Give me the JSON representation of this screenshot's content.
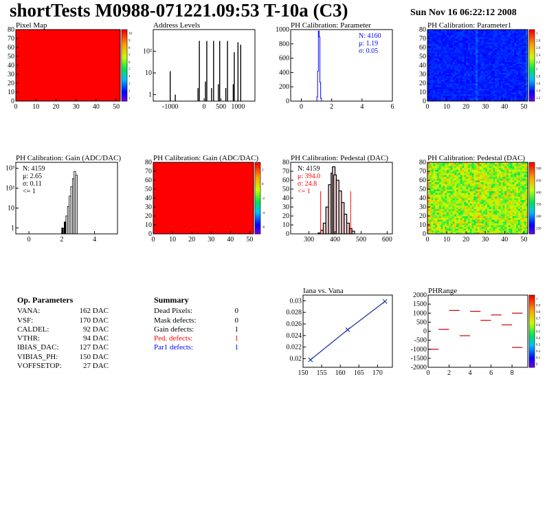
{
  "header": {
    "title": "shortTests M0988-071221.09:53 T-10a (C3)",
    "date": "Sun Nov 16 06:22:12 2008"
  },
  "colors": {
    "black": "#000000",
    "red": "#ff0000",
    "blue": "#0000ff",
    "hist_red": "#cc0000",
    "line_blue": "#2233aa"
  },
  "chart_data": [
    {
      "id": "pixel-map",
      "type": "heatmap",
      "title": "Pixel Map",
      "xlim": [
        0,
        52
      ],
      "ylim": [
        0,
        80
      ],
      "xticks": [
        "0",
        "10",
        "20",
        "30",
        "40",
        "50"
      ],
      "yticks": [
        "0",
        "10",
        "20",
        "30",
        "40",
        "50",
        "60",
        "70",
        "80"
      ],
      "uniform_value": 10,
      "zticks": [
        "1",
        "2",
        "3",
        "4",
        "5",
        "6",
        "7",
        "8",
        "9",
        "10"
      ]
    },
    {
      "id": "address-levels",
      "type": "bar",
      "title": "Address Levels",
      "xlim": [
        -1500,
        1500
      ],
      "ylog": true,
      "xticks": [
        "-1000",
        "0",
        "500",
        "1000"
      ],
      "yticks": [
        "1",
        "10",
        "10²"
      ],
      "peaks": [
        {
          "x": -1000,
          "y": 12
        },
        {
          "x": -850,
          "y": 1
        },
        {
          "x": -180,
          "y": 2
        },
        {
          "x": -140,
          "y": 300
        },
        {
          "x": 40,
          "y": 4
        },
        {
          "x": 80,
          "y": 300
        },
        {
          "x": 220,
          "y": 2
        },
        {
          "x": 280,
          "y": 300
        },
        {
          "x": 420,
          "y": 3
        },
        {
          "x": 460,
          "y": 300
        },
        {
          "x": 640,
          "y": 2
        },
        {
          "x": 690,
          "y": 300
        },
        {
          "x": 860,
          "y": 3
        },
        {
          "x": 890,
          "y": 90
        },
        {
          "x": 1000,
          "y": 260
        },
        {
          "x": 1080,
          "y": 200
        }
      ]
    },
    {
      "id": "ph-calibration-parameter",
      "type": "bar",
      "title": "PH Calibration: Parameter",
      "xlim": [
        -0.7,
        6.0
      ],
      "ylim": [
        0,
        1000
      ],
      "xticks": [
        "0",
        "2",
        "4",
        "6"
      ],
      "yticks": [
        "0",
        "200",
        "400",
        "600",
        "800",
        "1000"
      ],
      "bins": [
        {
          "x": 1.05,
          "y": 60
        },
        {
          "x": 1.1,
          "y": 420
        },
        {
          "x": 1.15,
          "y": 980
        },
        {
          "x": 1.2,
          "y": 900
        },
        {
          "x": 1.25,
          "y": 260
        },
        {
          "x": 1.3,
          "y": 40
        }
      ],
      "stats": [
        "N: 4160",
        "μ: 1.19",
        "σ: 0.05"
      ]
    },
    {
      "id": "ph-calibration-parameter1",
      "type": "heatmap",
      "title": "PH Calibration: Parameter1",
      "xlim": [
        0,
        52
      ],
      "ylim": [
        0,
        80
      ],
      "xticks": [
        "0",
        "10",
        "20",
        "30",
        "40",
        "50"
      ],
      "yticks": [
        "0",
        "10",
        "20",
        "30",
        "40",
        "50",
        "60",
        "70",
        "80"
      ],
      "zticks": [
        "1.2",
        "1.4",
        "1.6",
        "1.8",
        "2",
        "2.2",
        "2.4",
        "2.6",
        "2.8",
        "3"
      ]
    },
    {
      "id": "ph-calibration-gain-hist",
      "type": "bar",
      "title": "PH Calibration: Gain (ADC/DAC)",
      "xlim": [
        -0.8,
        5.4
      ],
      "ylog": true,
      "xticks": [
        "0",
        "2",
        "4"
      ],
      "yticks": [
        "1",
        "10",
        "10²",
        "10³"
      ],
      "bins": [
        {
          "x": 2.05,
          "y": 1
        },
        {
          "x": 2.2,
          "y": 2
        },
        {
          "x": 2.3,
          "y": 4
        },
        {
          "x": 2.4,
          "y": 12
        },
        {
          "x": 2.5,
          "y": 40
        },
        {
          "x": 2.6,
          "y": 120
        },
        {
          "x": 2.7,
          "y": 300
        },
        {
          "x": 2.8,
          "y": 700
        },
        {
          "x": 2.9,
          "y": 450
        }
      ],
      "stats": [
        "N: 4159",
        "μ: 2.65",
        "σ: 0.11",
        "<= 1"
      ]
    },
    {
      "id": "ph-calibration-gain-map",
      "type": "heatmap",
      "title": "PH Calibration: Gain (ADC/DAC)",
      "xlim": [
        0,
        52
      ],
      "ylim": [
        0,
        80
      ],
      "xticks": [
        "0",
        "10",
        "20",
        "30",
        "40",
        "50"
      ],
      "yticks": [
        "0",
        "10",
        "20",
        "30",
        "40",
        "50",
        "60",
        "70",
        "80"
      ],
      "zticks": [
        "-6",
        "-4",
        "-2",
        "0",
        "2"
      ]
    },
    {
      "id": "ph-calibration-pedestal-hist",
      "type": "bar",
      "title": "PH Calibration: Pedestal (DAC)",
      "xlim": [
        230,
        620
      ],
      "ylim": [
        0,
        80
      ],
      "xticks": [
        "300",
        "400",
        "500",
        "600"
      ],
      "yticks": [
        "0",
        "10",
        "20",
        "30",
        "40",
        "50",
        "60",
        "70",
        "80"
      ],
      "bins": [
        {
          "x": 340,
          "y": 1
        },
        {
          "x": 350,
          "y": 4
        },
        {
          "x": 360,
          "y": 12
        },
        {
          "x": 370,
          "y": 30
        },
        {
          "x": 380,
          "y": 55
        },
        {
          "x": 390,
          "y": 68
        },
        {
          "x": 395,
          "y": 75
        },
        {
          "x": 400,
          "y": 66
        },
        {
          "x": 410,
          "y": 60
        },
        {
          "x": 420,
          "y": 48
        },
        {
          "x": 430,
          "y": 35
        },
        {
          "x": 440,
          "y": 22
        },
        {
          "x": 450,
          "y": 12
        },
        {
          "x": 460,
          "y": 6
        },
        {
          "x": 470,
          "y": 3
        }
      ],
      "markers": [
        345,
        460
      ],
      "stats": [
        "N: 4159",
        "μ: 394.0",
        "σ: 24.8",
        "<= 1"
      ]
    },
    {
      "id": "ph-calibration-pedestal-map",
      "type": "heatmap",
      "title": "PH Calibration: Pedestal (DAC)",
      "xlim": [
        0,
        52
      ],
      "ylim": [
        0,
        80
      ],
      "xticks": [
        "0",
        "10",
        "20",
        "30",
        "40",
        "50"
      ],
      "yticks": [
        "0",
        "10",
        "20",
        "30",
        "40",
        "50",
        "60",
        "70",
        "80"
      ],
      "zticks": [
        "250",
        "300",
        "350",
        "400",
        "450",
        "500"
      ]
    },
    {
      "id": "iana-vs-vana",
      "type": "line",
      "title": "Iana vs. Vana",
      "xlim": [
        150,
        174
      ],
      "ylim": [
        0.0185,
        0.031
      ],
      "xticks": [
        "150",
        "155",
        "160",
        "165",
        "170"
      ],
      "yticks": [
        "0.02",
        "0.022",
        "0.024",
        "0.026",
        "0.028",
        "0.03"
      ],
      "x": [
        152,
        162,
        172
      ],
      "y": [
        0.0198,
        0.025,
        0.0299
      ]
    },
    {
      "id": "ph-range",
      "type": "scatter",
      "title": "PHRange",
      "xlim": [
        0,
        9.5
      ],
      "ylim": [
        -2000,
        2000
      ],
      "xticks": [
        "0",
        "2",
        "4",
        "6",
        "8"
      ],
      "yticks": [
        "2000",
        "1500",
        "1000",
        "500",
        "0",
        "-500",
        "-1000",
        "-1500",
        "-2000"
      ],
      "segments": [
        {
          "x": 0.5,
          "y": -1000
        },
        {
          "x": 1.5,
          "y": 100
        },
        {
          "x": 2.5,
          "y": 1150
        },
        {
          "x": 3.5,
          "y": -250
        },
        {
          "x": 4.5,
          "y": 1100
        },
        {
          "x": 5.5,
          "y": 600
        },
        {
          "x": 6.5,
          "y": 900
        },
        {
          "x": 7.5,
          "y": 350
        },
        {
          "x": 8.5,
          "y": -900
        },
        {
          "x": 8.5,
          "y": 1000
        }
      ],
      "zticks": [
        "0",
        "0.1",
        "0.2",
        "0.3",
        "0.4",
        "0.5",
        "0.6",
        "0.7",
        "0.8",
        "0.9",
        "1"
      ]
    }
  ],
  "op_parameters": {
    "title": "Op. Parameters",
    "rows": [
      {
        "name": "VANA:",
        "value": "162 DAC"
      },
      {
        "name": "VSF:",
        "value": "170 DAC"
      },
      {
        "name": "CALDEL:",
        "value": "92 DAC"
      },
      {
        "name": "VTHR:",
        "value": "94 DAC"
      },
      {
        "name": "IBIAS_DAC:",
        "value": "127 DAC"
      },
      {
        "name": "VIBIAS_PH:",
        "value": "150 DAC"
      },
      {
        "name": "VOFFSETOP:",
        "value": "27 DAC"
      }
    ]
  },
  "summary": {
    "title": "Summary",
    "rows": [
      {
        "name": "Dead Pixels:",
        "value": "0",
        "color": "#000000"
      },
      {
        "name": "Mask defects:",
        "value": "0",
        "color": "#000000"
      },
      {
        "name": "Gain defects:",
        "value": "1",
        "color": "#000000"
      },
      {
        "name": "Ped. defects:",
        "value": "1",
        "color": "#ff0000"
      },
      {
        "name": "Par1 defects:",
        "value": "1",
        "color": "#0000ff"
      }
    ]
  }
}
